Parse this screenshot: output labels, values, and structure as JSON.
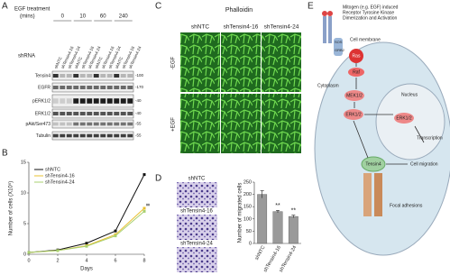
{
  "panels": {
    "a": "A",
    "b": "B",
    "c": "C",
    "d": "D",
    "e": "E"
  },
  "blot": {
    "treatment_label": "EGF treatment",
    "unit_label": "(mins)",
    "timepoints": [
      "0",
      "10",
      "60",
      "240"
    ],
    "shrna_label": "shRNA",
    "lanes": [
      "shNTC",
      "shTensin4-16",
      "shTensin4-24",
      "shNTC",
      "shTensin4-16",
      "shTensin4-24",
      "shNTC",
      "shTensin4-16",
      "shTensin4-24",
      "shNTC",
      "shTensin4-16",
      "shTensin4-24"
    ],
    "rows": [
      "Tensin4",
      "EGFR",
      "pERK1/2",
      "ERK1/2",
      "pAkt/Ser473",
      "Tubulin"
    ],
    "markers": [
      "-100",
      "-170",
      "-40",
      "-40",
      "-55",
      "-55"
    ]
  },
  "phalloidin": {
    "title": "Phalloidin",
    "columns": [
      "shNTC",
      "shTensin4-16",
      "shTensin4-24"
    ],
    "rows": [
      "-EGF",
      "+EGF"
    ]
  },
  "migration_images": {
    "labels": [
      "shNTC",
      "shTensin4-16",
      "shTensin4-24"
    ]
  },
  "chart_data": [
    {
      "type": "line",
      "xlabel": "Days",
      "ylabel": "Number of cells (X10⁵)",
      "x": [
        0,
        2,
        4,
        6,
        8
      ],
      "xlim": [
        0,
        8
      ],
      "xticks": [
        0,
        2,
        4,
        6,
        8
      ],
      "ylim": [
        0,
        15
      ],
      "yticks": [
        0,
        5,
        10,
        15
      ],
      "legend": "upper left",
      "series": [
        {
          "name": "shNTC",
          "color": "#111111",
          "values": [
            0.3,
            0.7,
            1.8,
            3.8,
            13
          ]
        },
        {
          "name": "shTensin4-16",
          "color": "#e8c030",
          "values": [
            0.3,
            0.6,
            1.4,
            3.2,
            7.5
          ]
        },
        {
          "name": "shTensin4-24",
          "color": "#a8d070",
          "values": [
            0.3,
            0.6,
            1.3,
            3.0,
            7
          ]
        }
      ],
      "annotations": [
        "**",
        "**"
      ]
    },
    {
      "type": "bar",
      "ylabel": "Number of migrated cells",
      "categories": [
        "shNTC",
        "shTensin4-16",
        "shTensin4-24"
      ],
      "values": [
        200,
        130,
        110
      ],
      "errors": [
        15,
        5,
        5
      ],
      "color": "#9a9a9a",
      "ylim": [
        0,
        250
      ],
      "yticks": [
        0,
        50,
        100,
        150,
        200,
        250
      ],
      "annotations": [
        "**",
        "**"
      ]
    }
  ],
  "diagram": {
    "mitogen_lines": [
      "Mitogen (e.g. EGF) induced",
      "Receptor Tyrosine Kinase",
      "Dimerization and Activation"
    ],
    "membrane": "Cell membrane",
    "sos": "SOS",
    "grb2": "GRB2",
    "ras": "Ras",
    "raf": "Raf",
    "mek": "MEK1/2",
    "erk": "ERK1/2",
    "cytoplasm": "Cytoplasm",
    "nucleus": "Nucleus",
    "erk_nucleus": "ERK1/2",
    "transcription": "Transcription",
    "tensin": "Tensin4",
    "migration": "Cell migration",
    "focal": "Focal adhesions"
  }
}
